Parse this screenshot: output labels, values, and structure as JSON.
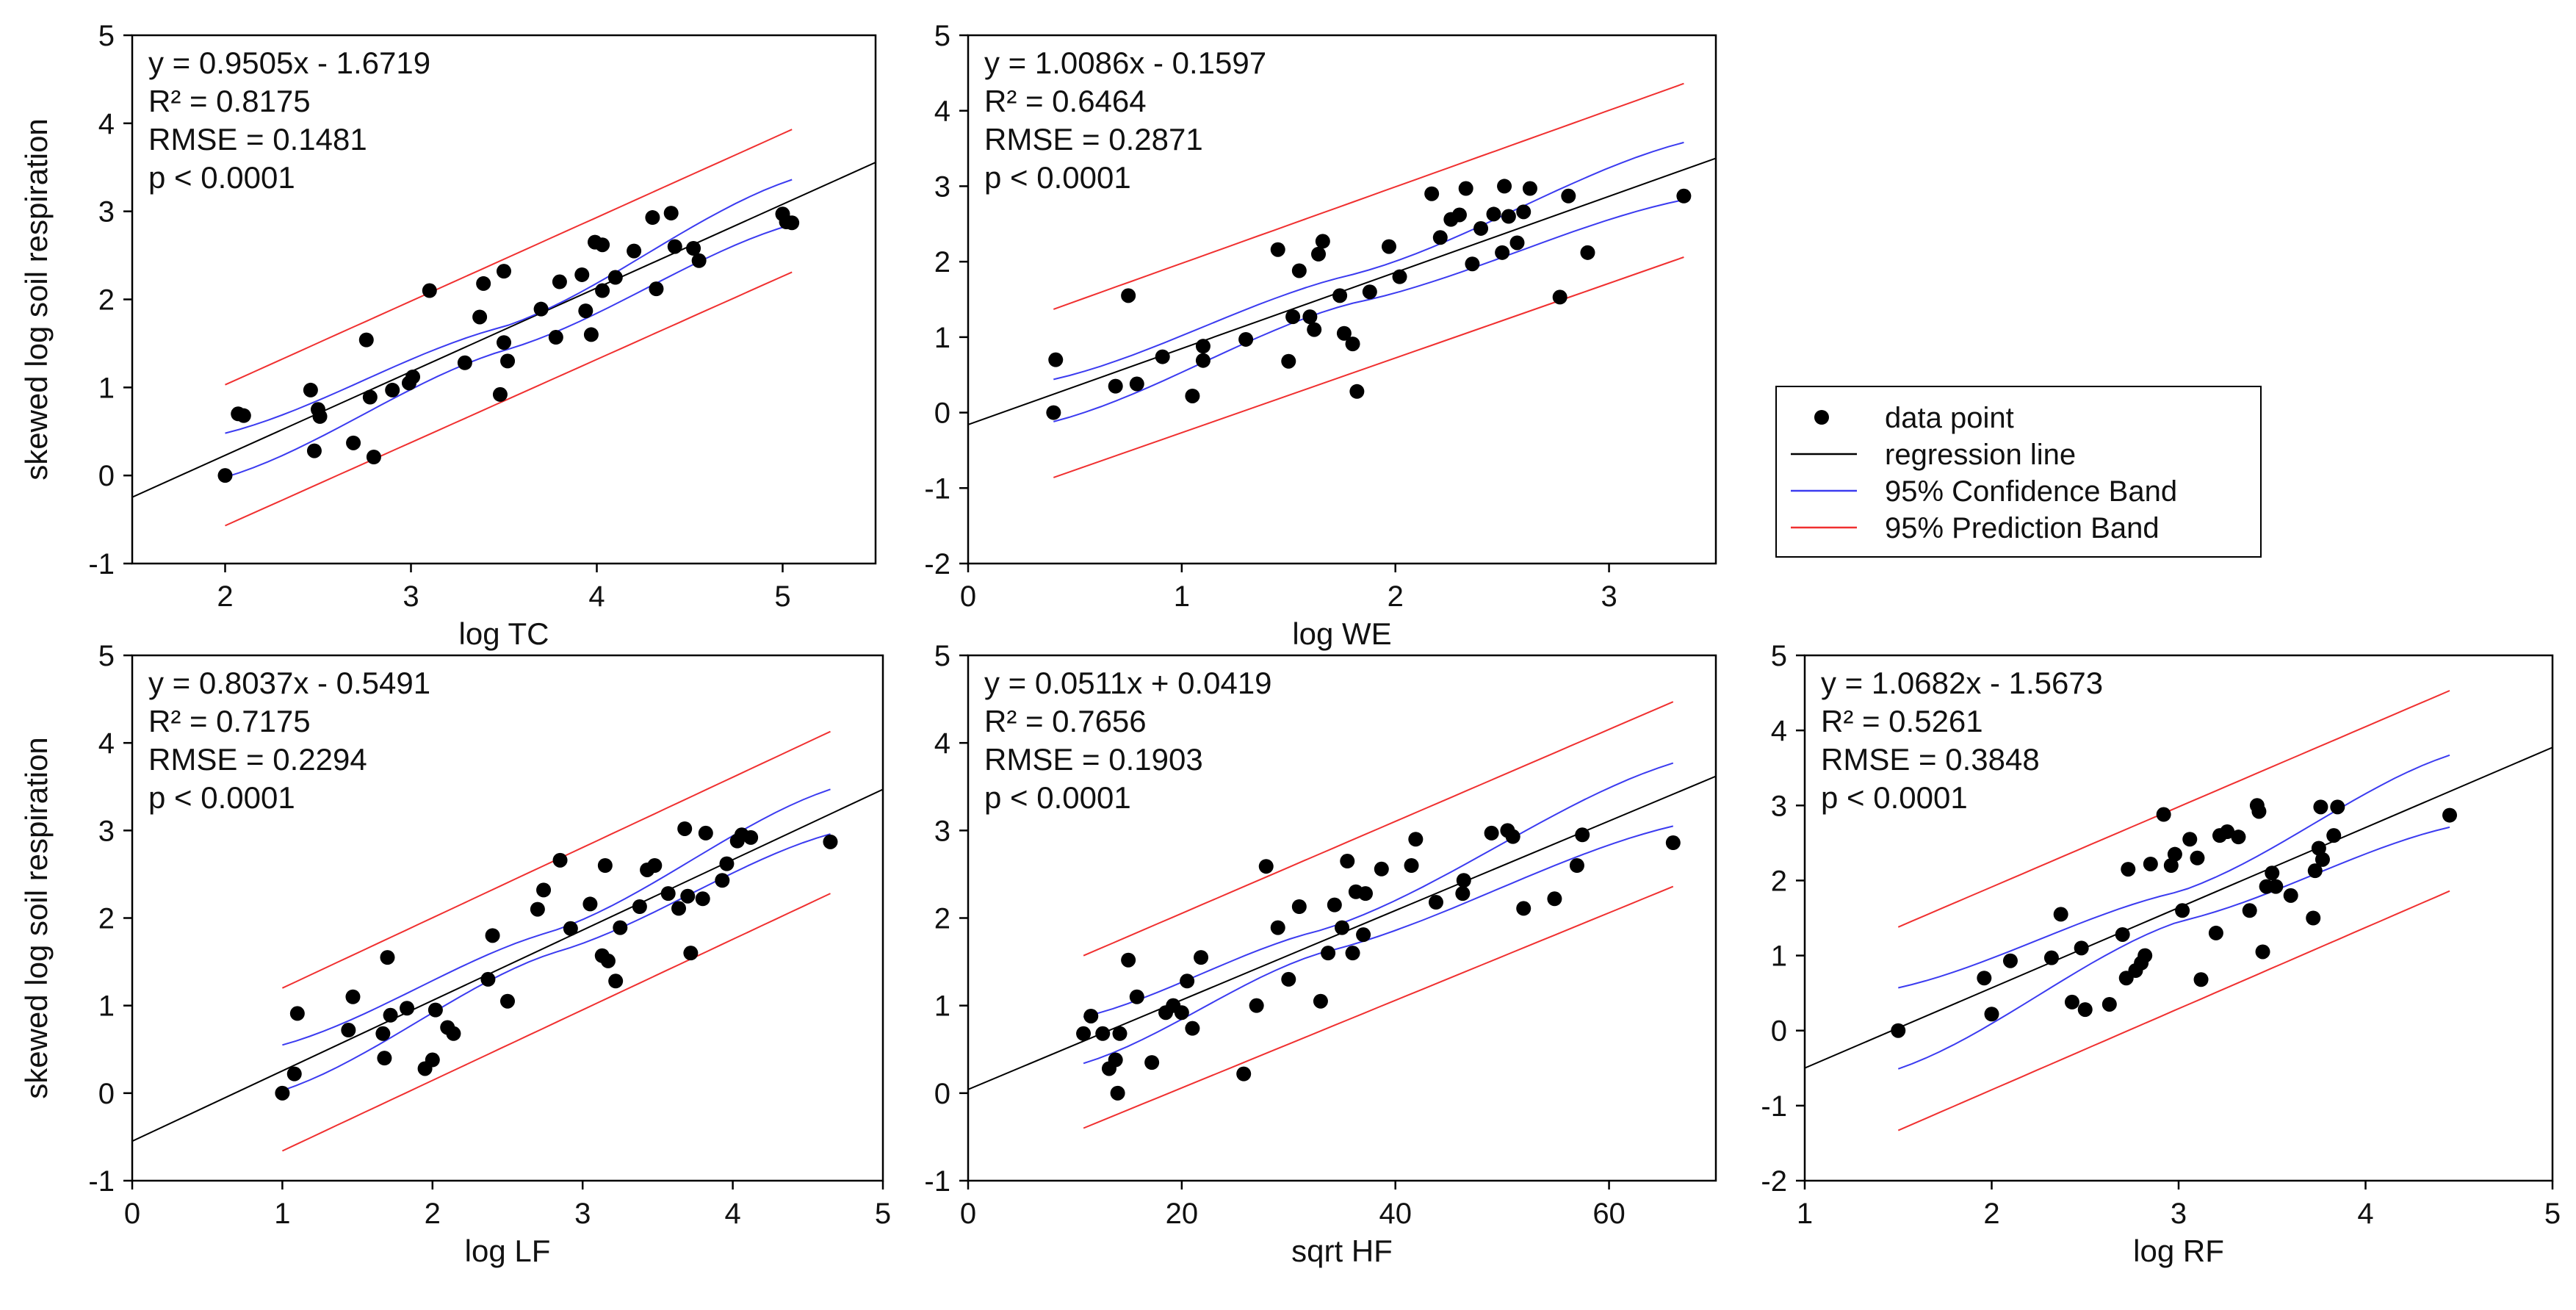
{
  "legend": {
    "items": [
      {
        "label": "data point",
        "kind": "marker",
        "color": "#000000"
      },
      {
        "label": "regression line",
        "kind": "line",
        "color": "#000000"
      },
      {
        "label": "95% Confidence Band",
        "kind": "line",
        "color": "#3b3bf0"
      },
      {
        "label": "95% Prediction Band",
        "kind": "line",
        "color": "#f03030"
      }
    ]
  },
  "colors": {
    "regression": "#000000",
    "confidence": "#3b3bf0",
    "prediction": "#f03030",
    "points": "#000000"
  },
  "chart_data": [
    {
      "type": "scatter",
      "xlabel": "log TC",
      "ylabel": "skewed log soil respiration",
      "xlim": [
        1.5,
        5.5
      ],
      "ylim": [
        -1,
        5
      ],
      "xticks": [
        2,
        3,
        4,
        5
      ],
      "yticks": [
        -1,
        0,
        1,
        2,
        3,
        4,
        5
      ],
      "regression": {
        "slope": 0.9505,
        "intercept": -1.6719
      },
      "stats": [
        "y = 0.9505x - 1.6719",
        "R² = 0.8175",
        "RMSE = 0.1481",
        "p < 0.0001"
      ],
      "band_x_range": [
        2.0,
        5.05
      ],
      "confidence_band": {
        "upper": [
          [
            2.0,
            0.48
          ],
          [
            3.5,
            1.69
          ],
          [
            5.05,
            3.36
          ]
        ],
        "lower": [
          [
            2.0,
            -0.02
          ],
          [
            3.5,
            1.42
          ],
          [
            5.05,
            2.85
          ]
        ]
      },
      "prediction_band": {
        "upper": [
          [
            2.0,
            1.03
          ],
          [
            5.05,
            3.93
          ]
        ],
        "lower": [
          [
            2.0,
            -0.57
          ],
          [
            5.05,
            2.31
          ]
        ]
      },
      "points": [
        [
          2.0,
          0.0
        ],
        [
          2.07,
          0.7
        ],
        [
          2.1,
          0.68
        ],
        [
          2.46,
          0.97
        ],
        [
          2.48,
          0.28
        ],
        [
          2.5,
          0.75
        ],
        [
          2.51,
          0.67
        ],
        [
          2.69,
          0.37
        ],
        [
          2.76,
          1.54
        ],
        [
          2.78,
          0.89
        ],
        [
          2.8,
          0.21
        ],
        [
          2.9,
          0.97
        ],
        [
          2.99,
          1.05
        ],
        [
          3.01,
          1.12
        ],
        [
          3.1,
          2.1
        ],
        [
          3.29,
          1.28
        ],
        [
          3.37,
          1.8
        ],
        [
          3.39,
          2.18
        ],
        [
          3.48,
          0.92
        ],
        [
          3.5,
          2.32
        ],
        [
          3.5,
          1.51
        ],
        [
          3.52,
          1.3
        ],
        [
          3.7,
          1.89
        ],
        [
          3.78,
          1.57
        ],
        [
          3.8,
          2.2
        ],
        [
          3.92,
          2.28
        ],
        [
          3.94,
          1.87
        ],
        [
          3.97,
          1.6
        ],
        [
          3.99,
          2.65
        ],
        [
          4.03,
          2.1
        ],
        [
          4.03,
          2.62
        ],
        [
          4.1,
          2.25
        ],
        [
          4.2,
          2.55
        ],
        [
          4.3,
          2.93
        ],
        [
          4.32,
          2.12
        ],
        [
          4.4,
          2.98
        ],
        [
          4.42,
          2.6
        ],
        [
          4.52,
          2.58
        ],
        [
          4.55,
          2.44
        ],
        [
          5.0,
          2.97
        ],
        [
          5.02,
          2.88
        ],
        [
          5.05,
          2.87
        ]
      ]
    },
    {
      "type": "scatter",
      "xlabel": "log WE",
      "ylabel": "",
      "xlim": [
        0,
        3.5
      ],
      "ylim": [
        -2,
        5
      ],
      "xticks": [
        0,
        1,
        2,
        3
      ],
      "yticks": [
        -2,
        -1,
        0,
        1,
        2,
        3,
        4,
        5
      ],
      "regression": {
        "slope": 1.0086,
        "intercept": -0.1597
      },
      "stats": [
        "y = 1.0086x - 0.1597",
        "R² = 0.6464",
        "RMSE = 0.2871",
        "p < 0.0001"
      ],
      "band_x_range": [
        0.4,
        3.35
      ],
      "confidence_band": {
        "upper": [
          [
            0.4,
            0.44
          ],
          [
            1.8,
            1.83
          ],
          [
            3.35,
            3.58
          ]
        ],
        "lower": [
          [
            0.4,
            -0.12
          ],
          [
            1.8,
            1.45
          ],
          [
            3.35,
            2.82
          ]
        ]
      },
      "prediction_band": {
        "upper": [
          [
            0.4,
            1.37
          ],
          [
            3.35,
            4.36
          ]
        ],
        "lower": [
          [
            0.4,
            -0.86
          ],
          [
            3.35,
            2.06
          ]
        ]
      },
      "points": [
        [
          0.4,
          0.0
        ],
        [
          0.41,
          0.7
        ],
        [
          0.69,
          0.35
        ],
        [
          0.75,
          1.55
        ],
        [
          0.79,
          0.38
        ],
        [
          0.91,
          0.74
        ],
        [
          1.05,
          0.22
        ],
        [
          1.1,
          0.88
        ],
        [
          1.1,
          0.69
        ],
        [
          1.3,
          0.97
        ],
        [
          1.45,
          2.16
        ],
        [
          1.5,
          0.68
        ],
        [
          1.52,
          1.27
        ],
        [
          1.55,
          1.88
        ],
        [
          1.6,
          1.27
        ],
        [
          1.62,
          1.1
        ],
        [
          1.64,
          2.1
        ],
        [
          1.66,
          2.27
        ],
        [
          1.74,
          1.55
        ],
        [
          1.76,
          1.05
        ],
        [
          1.8,
          0.91
        ],
        [
          1.82,
          0.28
        ],
        [
          1.88,
          1.6
        ],
        [
          1.97,
          2.2
        ],
        [
          2.02,
          1.8
        ],
        [
          2.17,
          2.9
        ],
        [
          2.21,
          2.32
        ],
        [
          2.26,
          2.56
        ],
        [
          2.3,
          2.62
        ],
        [
          2.33,
          2.97
        ],
        [
          2.36,
          1.97
        ],
        [
          2.4,
          2.44
        ],
        [
          2.46,
          2.63
        ],
        [
          2.5,
          2.12
        ],
        [
          2.51,
          3.0
        ],
        [
          2.53,
          2.6
        ],
        [
          2.57,
          2.25
        ],
        [
          2.6,
          2.66
        ],
        [
          2.63,
          2.97
        ],
        [
          2.77,
          1.53
        ],
        [
          2.81,
          2.87
        ],
        [
          2.9,
          2.12
        ],
        [
          3.35,
          2.87
        ]
      ]
    },
    {
      "type": "scatter",
      "xlabel": "log LF",
      "ylabel": "skewed log soil respiration",
      "xlim": [
        0,
        5
      ],
      "ylim": [
        -1,
        5
      ],
      "xticks": [
        0,
        1,
        2,
        3,
        4,
        5
      ],
      "yticks": [
        -1,
        0,
        1,
        2,
        3,
        4,
        5
      ],
      "regression": {
        "slope": 0.8037,
        "intercept": -0.5491
      },
      "stats": [
        "y = 0.8037x - 0.5491",
        "R² = 0.7175",
        "RMSE = 0.2294",
        "p < 0.0001"
      ],
      "band_x_range": [
        1.0,
        4.65
      ],
      "confidence_band": {
        "upper": [
          [
            1.0,
            0.55
          ],
          [
            2.8,
            1.85
          ],
          [
            4.65,
            3.47
          ]
        ],
        "lower": [
          [
            1.0,
            0.03
          ],
          [
            2.8,
            1.6
          ],
          [
            4.65,
            2.96
          ]
        ]
      },
      "prediction_band": {
        "upper": [
          [
            1.0,
            1.2
          ],
          [
            4.65,
            4.13
          ]
        ],
        "lower": [
          [
            1.0,
            -0.66
          ],
          [
            4.65,
            2.28
          ]
        ]
      },
      "points": [
        [
          1.0,
          0.0
        ],
        [
          1.08,
          0.22
        ],
        [
          1.1,
          0.91
        ],
        [
          1.44,
          0.72
        ],
        [
          1.47,
          1.1
        ],
        [
          1.67,
          0.68
        ],
        [
          1.68,
          0.4
        ],
        [
          1.7,
          1.55
        ],
        [
          1.72,
          0.89
        ],
        [
          1.83,
          0.97
        ],
        [
          1.95,
          0.28
        ],
        [
          2.0,
          0.38
        ],
        [
          2.02,
          0.95
        ],
        [
          2.1,
          0.75
        ],
        [
          2.14,
          0.68
        ],
        [
          2.37,
          1.3
        ],
        [
          2.4,
          1.8
        ],
        [
          2.5,
          1.05
        ],
        [
          2.7,
          2.1
        ],
        [
          2.74,
          2.32
        ],
        [
          2.85,
          2.66
        ],
        [
          2.92,
          1.88
        ],
        [
          3.05,
          2.16
        ],
        [
          3.13,
          1.57
        ],
        [
          3.15,
          2.6
        ],
        [
          3.17,
          1.51
        ],
        [
          3.22,
          1.28
        ],
        [
          3.25,
          1.89
        ],
        [
          3.38,
          2.13
        ],
        [
          3.43,
          2.55
        ],
        [
          3.48,
          2.6
        ],
        [
          3.57,
          2.28
        ],
        [
          3.64,
          2.11
        ],
        [
          3.68,
          3.02
        ],
        [
          3.7,
          2.25
        ],
        [
          3.72,
          1.6
        ],
        [
          3.8,
          2.22
        ],
        [
          3.82,
          2.97
        ],
        [
          3.93,
          2.43
        ],
        [
          3.96,
          2.62
        ],
        [
          4.03,
          2.88
        ],
        [
          4.06,
          2.95
        ],
        [
          4.12,
          2.92
        ],
        [
          4.65,
          2.87
        ]
      ]
    },
    {
      "type": "scatter",
      "xlabel": "sqrt HF",
      "ylabel": "",
      "xlim": [
        0,
        70
      ],
      "ylim": [
        -1,
        5
      ],
      "xticks": [
        0,
        20,
        40,
        60
      ],
      "yticks": [
        -1,
        0,
        1,
        2,
        3,
        4,
        5
      ],
      "regression": {
        "slope": 0.0511,
        "intercept": 0.0419
      },
      "stats": [
        "y = 0.0511x + 0.0419",
        "R² = 0.7656",
        "RMSE = 0.1903",
        "p < 0.0001"
      ],
      "band_x_range": [
        10.8,
        66
      ],
      "confidence_band": {
        "upper": [
          [
            10.8,
            0.87
          ],
          [
            33,
            1.86
          ],
          [
            66,
            3.77
          ]
        ],
        "lower": [
          [
            10.8,
            0.34
          ],
          [
            33,
            1.6
          ],
          [
            66,
            3.05
          ]
        ]
      },
      "prediction_band": {
        "upper": [
          [
            10.8,
            1.57
          ],
          [
            66,
            4.47
          ]
        ],
        "lower": [
          [
            10.8,
            -0.4
          ],
          [
            66,
            2.36
          ]
        ]
      },
      "points": [
        [
          10.8,
          0.68
        ],
        [
          11.5,
          0.88
        ],
        [
          12.6,
          0.68
        ],
        [
          13.2,
          0.28
        ],
        [
          13.8,
          0.38
        ],
        [
          14.0,
          0.0
        ],
        [
          14.2,
          0.68
        ],
        [
          15.0,
          1.52
        ],
        [
          15.8,
          1.1
        ],
        [
          17.2,
          0.35
        ],
        [
          18.5,
          0.92
        ],
        [
          19.2,
          1.0
        ],
        [
          20.0,
          0.92
        ],
        [
          20.5,
          1.28
        ],
        [
          21.0,
          0.74
        ],
        [
          21.8,
          1.55
        ],
        [
          25.8,
          0.22
        ],
        [
          27.0,
          1.0
        ],
        [
          27.9,
          2.59
        ],
        [
          29.0,
          1.89
        ],
        [
          30.0,
          1.3
        ],
        [
          31.0,
          2.13
        ],
        [
          33.0,
          1.05
        ],
        [
          33.7,
          1.6
        ],
        [
          34.3,
          2.15
        ],
        [
          35.0,
          1.89
        ],
        [
          35.5,
          2.65
        ],
        [
          36.0,
          1.6
        ],
        [
          36.3,
          2.3
        ],
        [
          37.0,
          1.81
        ],
        [
          37.2,
          2.28
        ],
        [
          38.7,
          2.56
        ],
        [
          41.5,
          2.6
        ],
        [
          41.9,
          2.9
        ],
        [
          43.8,
          2.18
        ],
        [
          46.3,
          2.28
        ],
        [
          46.4,
          2.43
        ],
        [
          49.0,
          2.97
        ],
        [
          50.5,
          3.0
        ],
        [
          51.0,
          2.93
        ],
        [
          52.0,
          2.11
        ],
        [
          54.9,
          2.22
        ],
        [
          57.0,
          2.6
        ],
        [
          57.5,
          2.95
        ],
        [
          66.0,
          2.86
        ]
      ]
    },
    {
      "type": "scatter",
      "xlabel": "log RF",
      "ylabel": "",
      "xlim": [
        1,
        5
      ],
      "ylim": [
        -2,
        5
      ],
      "xticks": [
        1,
        2,
        3,
        4,
        5
      ],
      "yticks": [
        -2,
        -1,
        0,
        1,
        2,
        3,
        4,
        5
      ],
      "regression": {
        "slope": 1.0682,
        "intercept": -1.5673
      },
      "stats": [
        "y = 1.0682x - 1.5673",
        "R² = 0.5261",
        "RMSE = 0.3848",
        "p < 0.0001"
      ],
      "band_x_range": [
        1.5,
        4.45
      ],
      "confidence_band": {
        "upper": [
          [
            1.5,
            0.57
          ],
          [
            3.0,
            1.85
          ],
          [
            4.45,
            3.67
          ]
        ],
        "lower": [
          [
            1.5,
            -0.51
          ],
          [
            3.0,
            1.45
          ],
          [
            4.45,
            2.71
          ]
        ]
      },
      "prediction_band": {
        "upper": [
          [
            1.5,
            1.38
          ],
          [
            4.45,
            4.53
          ]
        ],
        "lower": [
          [
            1.5,
            -1.33
          ],
          [
            4.45,
            1.86
          ]
        ]
      },
      "points": [
        [
          1.5,
          0.0
        ],
        [
          1.96,
          0.7
        ],
        [
          2.0,
          0.22
        ],
        [
          2.1,
          0.93
        ],
        [
          2.32,
          0.97
        ],
        [
          2.37,
          1.55
        ],
        [
          2.43,
          0.38
        ],
        [
          2.48,
          1.1
        ],
        [
          2.5,
          0.28
        ],
        [
          2.63,
          0.35
        ],
        [
          2.7,
          1.28
        ],
        [
          2.72,
          0.7
        ],
        [
          2.73,
          2.15
        ],
        [
          2.77,
          0.8
        ],
        [
          2.8,
          0.9
        ],
        [
          2.82,
          1.0
        ],
        [
          2.85,
          2.22
        ],
        [
          2.92,
          2.88
        ],
        [
          2.96,
          2.2
        ],
        [
          2.98,
          2.35
        ],
        [
          3.02,
          1.6
        ],
        [
          3.06,
          2.55
        ],
        [
          3.1,
          2.3
        ],
        [
          3.12,
          0.68
        ],
        [
          3.2,
          1.3
        ],
        [
          3.22,
          2.6
        ],
        [
          3.26,
          2.65
        ],
        [
          3.32,
          2.58
        ],
        [
          3.38,
          1.6
        ],
        [
          3.42,
          3.0
        ],
        [
          3.43,
          2.92
        ],
        [
          3.45,
          1.05
        ],
        [
          3.47,
          1.92
        ],
        [
          3.5,
          2.1
        ],
        [
          3.52,
          1.92
        ],
        [
          3.6,
          1.8
        ],
        [
          3.72,
          1.5
        ],
        [
          3.73,
          2.13
        ],
        [
          3.75,
          2.43
        ],
        [
          3.76,
          2.98
        ],
        [
          3.77,
          2.28
        ],
        [
          3.83,
          2.6
        ],
        [
          3.85,
          2.98
        ],
        [
          4.45,
          2.87
        ]
      ]
    }
  ]
}
